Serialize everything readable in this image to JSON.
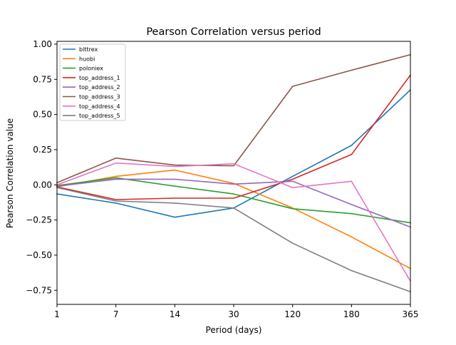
{
  "chart_data": {
    "type": "line",
    "title": "Pearson Correlation versus period",
    "xlabel": "Period (days)",
    "ylabel": "Pearson Correlation value",
    "categories": [
      "1",
      "7",
      "14",
      "30",
      "120",
      "180",
      "365"
    ],
    "ylim": [
      -0.85,
      1.02
    ],
    "yticks": [
      {
        "value": 1.0,
        "label": "1.00"
      },
      {
        "value": 0.75,
        "label": "0.75"
      },
      {
        "value": 0.5,
        "label": "0.50"
      },
      {
        "value": 0.25,
        "label": "0.25"
      },
      {
        "value": 0.0,
        "label": "0.00"
      },
      {
        "value": -0.25,
        "label": "−0.25"
      },
      {
        "value": -0.5,
        "label": "−0.50"
      },
      {
        "value": -0.75,
        "label": "−0.75"
      }
    ],
    "grid": false,
    "legend": "top-left",
    "series": [
      {
        "name": "bittrex",
        "color": "#1f77b4",
        "values": [
          -0.065,
          -0.13,
          -0.23,
          -0.165,
          0.06,
          0.28,
          0.675
        ]
      },
      {
        "name": "huobi",
        "color": "#ff7f0e",
        "values": [
          -0.015,
          0.06,
          0.105,
          0.01,
          -0.165,
          -0.37,
          -0.595
        ]
      },
      {
        "name": "poloniex",
        "color": "#2ca02c",
        "values": [
          -0.005,
          0.05,
          -0.01,
          -0.065,
          -0.17,
          -0.205,
          -0.27
        ]
      },
      {
        "name": "top_address_1",
        "color": "#d62728",
        "values": [
          -0.015,
          -0.105,
          -0.095,
          -0.095,
          0.04,
          0.215,
          0.78
        ]
      },
      {
        "name": "top_address_2",
        "color": "#9467bd",
        "values": [
          -0.01,
          0.04,
          0.04,
          0.005,
          0.025,
          -0.14,
          -0.3
        ]
      },
      {
        "name": "top_address_3",
        "color": "#8c564b",
        "values": [
          0.015,
          0.19,
          0.14,
          0.135,
          0.7,
          0.815,
          0.925
        ]
      },
      {
        "name": "top_address_4",
        "color": "#e377c2",
        "values": [
          0.0,
          0.155,
          0.13,
          0.15,
          -0.02,
          0.025,
          -0.685
        ]
      },
      {
        "name": "top_address_5",
        "color": "#7f7f7f",
        "values": [
          -0.02,
          -0.115,
          -0.13,
          -0.165,
          -0.415,
          -0.61,
          -0.76
        ]
      }
    ]
  }
}
